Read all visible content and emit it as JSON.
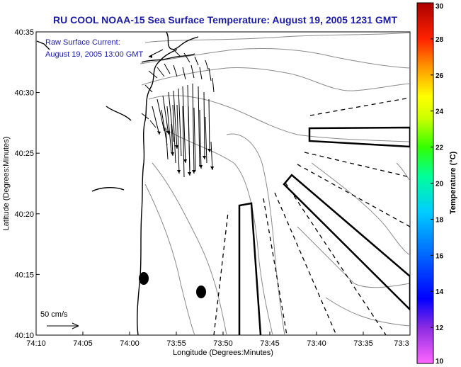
{
  "title": "RU COOL  NOAA-15  Sea Surface Temperature:  August 19, 2005 1231 GMT",
  "annotation_line1": "Raw Surface Current:",
  "annotation_line2": "August 19, 2005 13:00 GMT",
  "scale_label": "50 cm/s",
  "x_axis": {
    "label": "Longitude (Degrees:Minutes)",
    "ticks": [
      "74:10",
      "74:05",
      "74:00",
      "73:55",
      "73:50",
      "73:45",
      "73:40",
      "73:35",
      "73:3"
    ]
  },
  "y_axis": {
    "label": "Latitude (Degrees:Minutes)",
    "ticks": [
      "40:35",
      "40:30",
      "40:25",
      "40:20",
      "40:15",
      "40:10"
    ]
  },
  "colorbar": {
    "label": "Temperature (°C)",
    "min": 10,
    "max": 30,
    "ticks": [
      "30",
      "28",
      "26",
      "24",
      "22",
      "20",
      "18",
      "16",
      "14",
      "12",
      "10"
    ]
  },
  "colors": {
    "title": "#1a1aa6",
    "coast": "#000000",
    "bathymetry": "#8a8a8a",
    "vectors": "#000000"
  },
  "icons": {
    "station_markers": "filled-circle",
    "scale_arrow": "right-arrow"
  }
}
